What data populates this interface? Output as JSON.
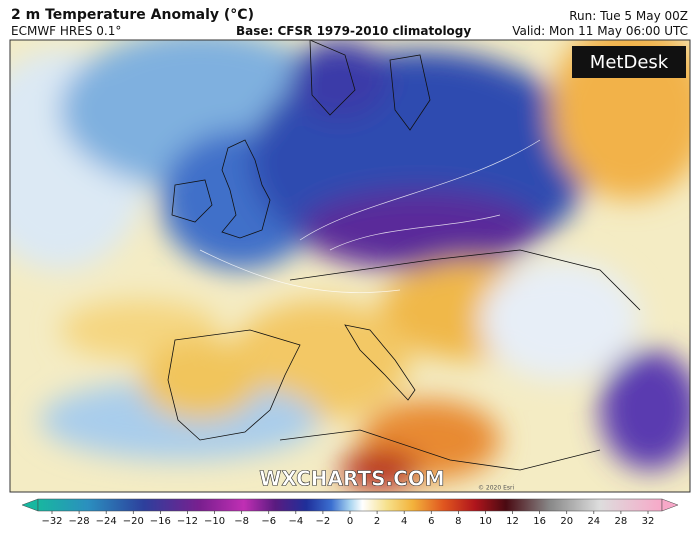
{
  "header": {
    "title": "2 m Temperature Anomaly (°C)",
    "model": "ECMWF HRES 0.1°",
    "base": "Base: CFSR 1979-2010 climatology",
    "run": "Run: Tue 5 May 00Z",
    "valid": "Valid: Mon 11 May 06:00 UTC"
  },
  "map": {
    "logo": "MetDesk",
    "watermark": "WXCHARTS.COM",
    "credit": "© 2020 Esri"
  },
  "colorbar": {
    "labels": [
      "−32",
      "−28",
      "−24",
      "−20",
      "−16",
      "−12",
      "−10",
      "−8",
      "−6",
      "−4",
      "−2",
      "0",
      "2",
      "4",
      "6",
      "8",
      "10",
      "12",
      "16",
      "20",
      "24",
      "28",
      "32"
    ]
  }
}
